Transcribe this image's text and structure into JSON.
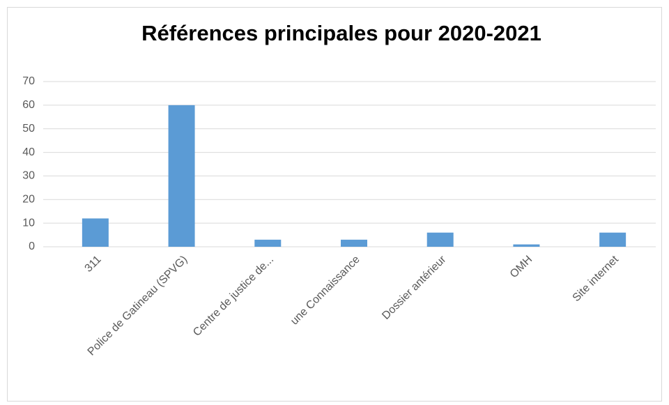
{
  "chart_data": {
    "type": "bar",
    "title": "Références principales pour 2020-2021",
    "categories": [
      "311",
      "Police de Gatineau (SPVG)",
      "Centre de justice de...",
      "une Connaissance",
      "Dossier antérieur",
      "OMH",
      "Site internet"
    ],
    "values": [
      12,
      60,
      3,
      3,
      6,
      1,
      6
    ],
    "color": "#5b9bd5",
    "ylim": [
      0,
      70
    ],
    "yticks": [
      0,
      10,
      20,
      30,
      40,
      50,
      60,
      70
    ],
    "grid": true
  }
}
